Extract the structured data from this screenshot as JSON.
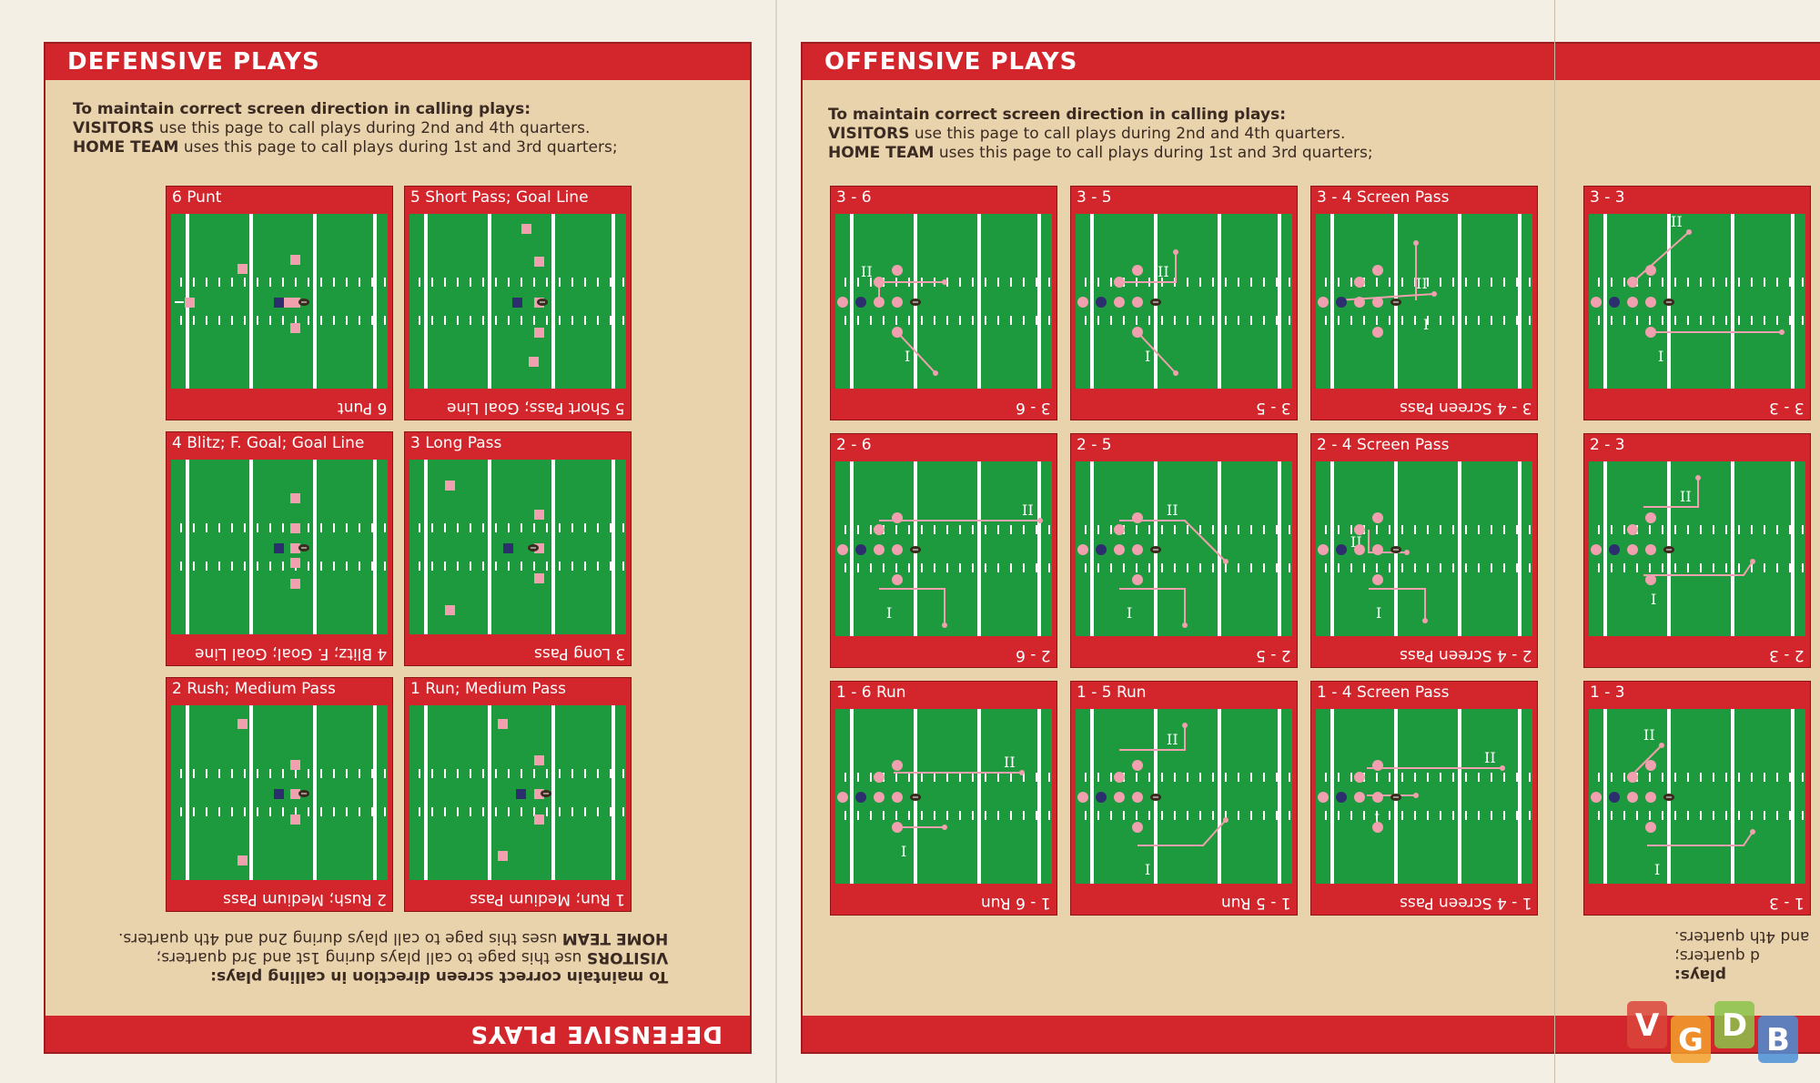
{
  "defensive": {
    "title": "DEFENSIVE PLAYS",
    "instruction": {
      "heading": "To maintain correct screen direction in calling plays:",
      "visitors_label": "VISITORS",
      "visitors_text": " use this page to call plays during 2nd and 4th quarters.",
      "home_label": "HOME TEAM",
      "home_text": " uses this page to call plays during 1st and 3rd quarters;"
    },
    "instruction_flipped": {
      "heading": "To maintain correct screen direction in calling plays:",
      "visitors_label": "VISITORS",
      "visitors_text": " use this page to call plays during 1st and 3rd quarters;",
      "home_label": "HOME TEAM",
      "home_text": " uses this page to call plays during 2nd and 4th quarters."
    },
    "cards": [
      {
        "label": "6 Punt"
      },
      {
        "label": "5 Short Pass; Goal Line"
      },
      {
        "label": "4 Blitz; F. Goal; Goal Line"
      },
      {
        "label": "3 Long Pass"
      },
      {
        "label": "2 Rush; Medium Pass"
      },
      {
        "label": "1 Run; Medium Pass"
      }
    ]
  },
  "offensive": {
    "title": "OFFENSIVE PLAYS",
    "instruction": {
      "heading": "To maintain correct screen direction in calling plays:",
      "visitors_label": "VISITORS",
      "visitors_text": " use this page to call plays during 2nd and 4th quarters.",
      "home_label": "HOME TEAM",
      "home_text": " uses this page to call plays during 1st and 3rd quarters;"
    },
    "partial_flipped": {
      "line1": "plays:",
      "line2": "d quarters;",
      "line3": "and 4th quarters."
    },
    "cards": [
      {
        "label": "3 - 6"
      },
      {
        "label": "3 - 5"
      },
      {
        "label": "3 - 4 Screen Pass"
      },
      {
        "label": "3 - 3"
      },
      {
        "label": "2 - 6"
      },
      {
        "label": "2 - 5"
      },
      {
        "label": "2 - 4 Screen Pass"
      },
      {
        "label": "2 - 3"
      },
      {
        "label": "1 - 6 Run"
      },
      {
        "label": "1 - 5 Run"
      },
      {
        "label": "1 - 4 Screen Pass"
      },
      {
        "label": "1 - 3"
      }
    ]
  },
  "route_markers": {
    "one": "I",
    "two": "II"
  },
  "watermark": {
    "letters": [
      "V",
      "G",
      "D",
      "B"
    ]
  },
  "colors": {
    "banner_red": "#d2262c",
    "field_green": "#1e9a3e",
    "paper": "#e9d3ad",
    "player_pink": "#f0a0ae",
    "player_navy": "#2c2e6e"
  }
}
